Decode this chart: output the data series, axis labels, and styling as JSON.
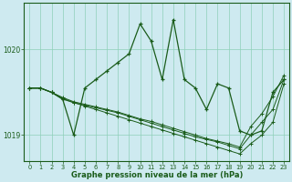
{
  "title": "Graphe pression niveau de la mer (hPa)",
  "background_color": "#ceeaf0",
  "line_color": "#1a5c1a",
  "grid_color": "#8ecfb8",
  "x_labels": [
    "0",
    "1",
    "2",
    "3",
    "4",
    "5",
    "6",
    "7",
    "8",
    "9",
    "10",
    "11",
    "12",
    "13",
    "14",
    "15",
    "16",
    "17",
    "18",
    "19",
    "20",
    "21",
    "22",
    "23"
  ],
  "yticks": [
    1019,
    1020
  ],
  "ylim": [
    1018.7,
    1020.55
  ],
  "xlim": [
    -0.5,
    23.5
  ],
  "series": [
    [
      1019.55,
      1019.55,
      1019.5,
      1019.42,
      1019.38,
      1019.34,
      1019.3,
      1019.26,
      1019.22,
      1019.18,
      1019.14,
      1019.1,
      1019.06,
      1019.02,
      1018.98,
      1018.94,
      1018.9,
      1018.86,
      1018.82,
      1018.78,
      1018.9,
      1019.0,
      1019.15,
      1019.6
    ],
    [
      1019.55,
      1019.55,
      1019.5,
      1019.43,
      1019.38,
      1019.35,
      1019.32,
      1019.29,
      1019.26,
      1019.22,
      1019.18,
      1019.14,
      1019.1,
      1019.06,
      1019.02,
      1018.98,
      1018.95,
      1018.92,
      1018.88,
      1018.84,
      1019.0,
      1019.15,
      1019.3,
      1019.65
    ],
    [
      1019.55,
      1019.55,
      1019.5,
      1019.44,
      1019.39,
      1019.36,
      1019.33,
      1019.3,
      1019.27,
      1019.23,
      1019.19,
      1019.16,
      1019.12,
      1019.08,
      1019.04,
      1019.0,
      1018.96,
      1018.93,
      1018.9,
      1018.86,
      1019.1,
      1019.25,
      1019.45,
      1019.7
    ]
  ],
  "main_series": [
    1019.55,
    1019.55,
    1019.5,
    1019.42,
    1019.0,
    1019.55,
    1019.65,
    1019.75,
    1019.85,
    1019.95,
    1020.3,
    1020.1,
    1019.65,
    1020.35,
    1019.65,
    1019.55,
    1019.3,
    1019.6,
    1019.55,
    1019.05,
    1019.0,
    1019.05,
    1019.5,
    1019.65
  ]
}
